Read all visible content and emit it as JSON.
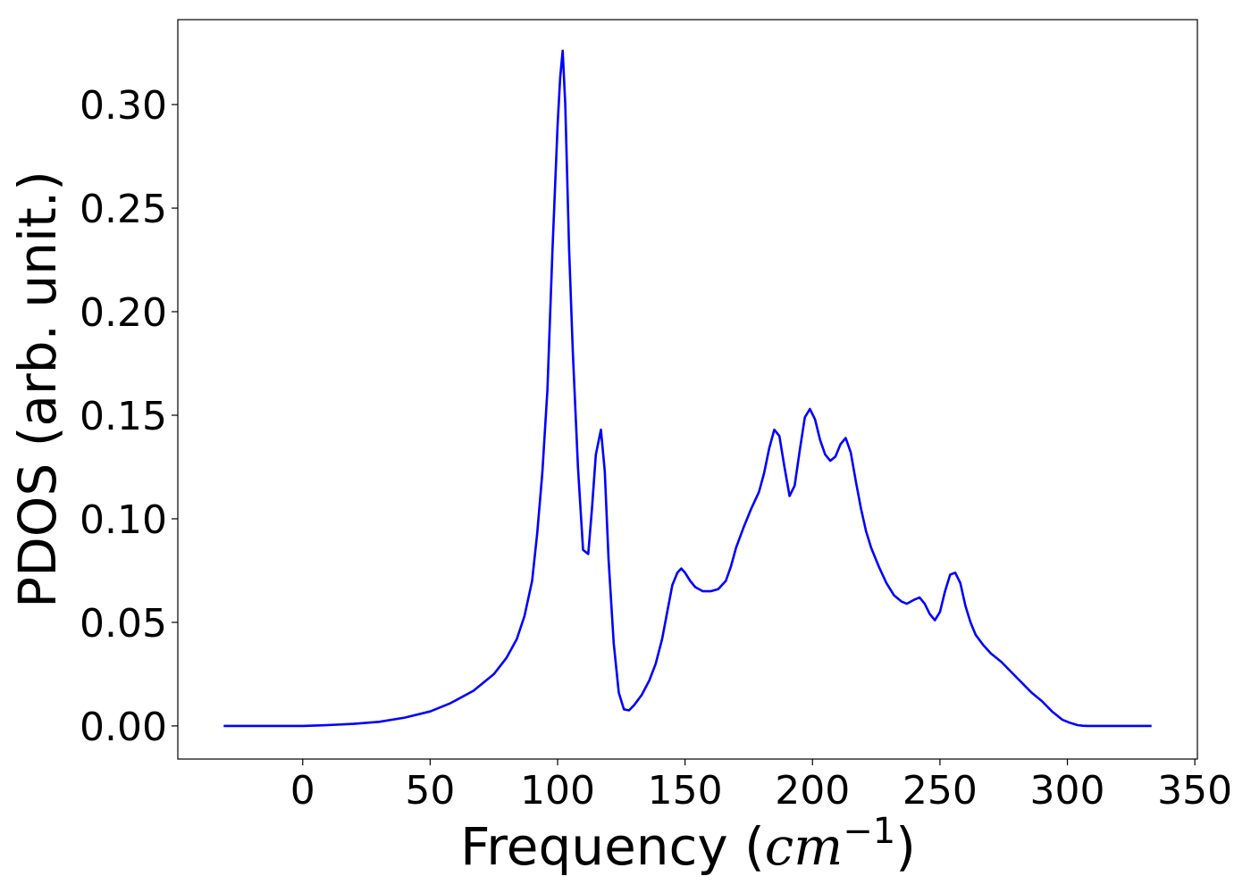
{
  "chart_data": {
    "type": "line",
    "title": "",
    "xlabel_main": "Frequency (",
    "xlabel_unit": "cm",
    "xlabel_exp": "−1",
    "xlabel_close": ")",
    "ylabel": "PDOS (arb. unit.)",
    "xlim": [
      -49,
      351
    ],
    "ylim": [
      -0.016,
      0.341
    ],
    "x_ticks": [
      0,
      50,
      100,
      150,
      200,
      250,
      300,
      350
    ],
    "x_tick_labels": [
      "0",
      "50",
      "100",
      "150",
      "200",
      "250",
      "300",
      "350"
    ],
    "y_ticks": [
      0.0,
      0.05,
      0.1,
      0.15,
      0.2,
      0.25,
      0.3
    ],
    "y_tick_labels": [
      "0.00",
      "0.05",
      "0.10",
      "0.15",
      "0.20",
      "0.25",
      "0.30"
    ],
    "grid": false,
    "legend": "none",
    "series": [
      {
        "color": "#0000ff",
        "x": [
          -31,
          0,
          8,
          20,
          30,
          40,
          50,
          58,
          67,
          75,
          80,
          84,
          87,
          90,
          92,
          94,
          96,
          98,
          100,
          101,
          102,
          103,
          104.5,
          106,
          108,
          110,
          112,
          113.5,
          115,
          117,
          118.5,
          120,
          122,
          124,
          126,
          128,
          130,
          133,
          136,
          138.5,
          141,
          143,
          145,
          147,
          148.5,
          150,
          152,
          154,
          157,
          160,
          163,
          166,
          168,
          170,
          173,
          176,
          179,
          181,
          183,
          185,
          187,
          189,
          191,
          193,
          195,
          197,
          199,
          201,
          203,
          205,
          207,
          209,
          211,
          213,
          215,
          217,
          219,
          221,
          223,
          226,
          229,
          232,
          235,
          237,
          240,
          242,
          244,
          246,
          248,
          250,
          252,
          254,
          256,
          258,
          260,
          262,
          264,
          267,
          270,
          274,
          278,
          282,
          286,
          290,
          294,
          298,
          301,
          304,
          306,
          308,
          310,
          315,
          320,
          333
        ],
        "y": [
          0.0,
          0.0,
          0.0003,
          0.001,
          0.002,
          0.004,
          0.007,
          0.011,
          0.017,
          0.025,
          0.033,
          0.042,
          0.053,
          0.07,
          0.093,
          0.122,
          0.162,
          0.23,
          0.29,
          0.313,
          0.326,
          0.3,
          0.23,
          0.18,
          0.125,
          0.085,
          0.083,
          0.105,
          0.131,
          0.143,
          0.123,
          0.08,
          0.04,
          0.016,
          0.008,
          0.0075,
          0.01,
          0.015,
          0.022,
          0.03,
          0.042,
          0.055,
          0.068,
          0.074,
          0.076,
          0.074,
          0.07,
          0.067,
          0.065,
          0.065,
          0.066,
          0.07,
          0.077,
          0.086,
          0.096,
          0.105,
          0.113,
          0.122,
          0.134,
          0.143,
          0.14,
          0.125,
          0.111,
          0.116,
          0.133,
          0.149,
          0.153,
          0.148,
          0.138,
          0.131,
          0.128,
          0.13,
          0.136,
          0.139,
          0.132,
          0.118,
          0.105,
          0.094,
          0.086,
          0.077,
          0.069,
          0.063,
          0.06,
          0.059,
          0.061,
          0.062,
          0.059,
          0.054,
          0.051,
          0.055,
          0.065,
          0.073,
          0.074,
          0.069,
          0.058,
          0.05,
          0.044,
          0.039,
          0.035,
          0.031,
          0.026,
          0.021,
          0.016,
          0.012,
          0.007,
          0.003,
          0.0015,
          0.0004,
          0.0001,
          0.0,
          0.0,
          0.0,
          0.0,
          0.0
        ]
      }
    ]
  }
}
